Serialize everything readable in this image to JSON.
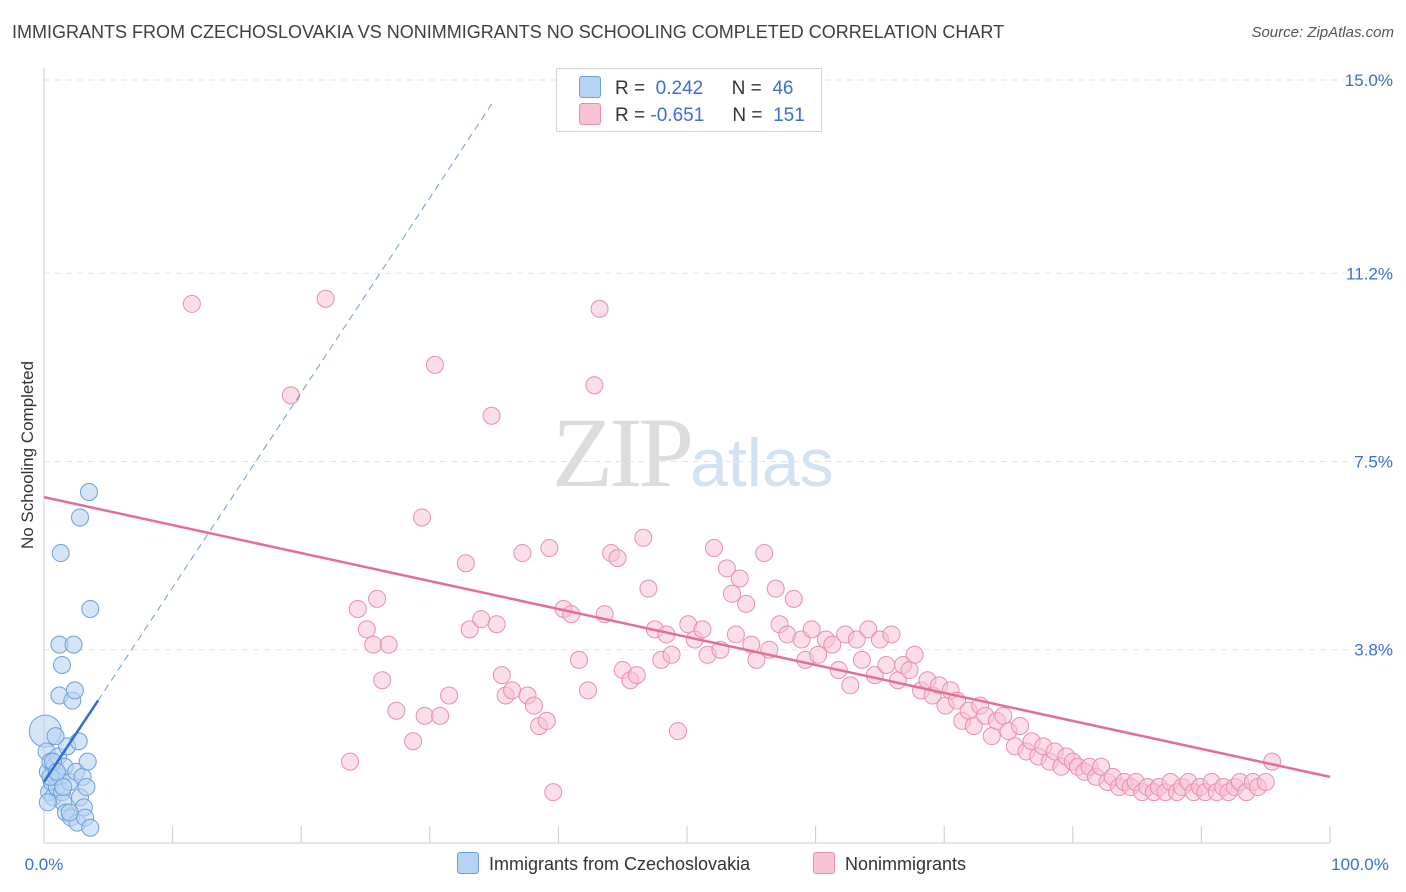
{
  "title": "IMMIGRANTS FROM CZECHOSLOVAKIA VS NONIMMIGRANTS NO SCHOOLING COMPLETED CORRELATION CHART",
  "source": "Source: ZipAtlas.com",
  "watermark": {
    "zip": "ZIP",
    "atlas": "atlas"
  },
  "legend": {
    "rows": [
      {
        "r_label": "R =",
        "r_value": "0.242",
        "n_label": "N =",
        "n_value": "46"
      },
      {
        "r_label": "R =",
        "r_value": "-0.651",
        "n_label": "N =",
        "n_value": "151"
      }
    ]
  },
  "colors": {
    "blue_fill": "#b7d3f2",
    "blue_stroke": "#6f9fd8",
    "blue_line": "#2c6fd6",
    "pink_fill": "#f7c3d3",
    "pink_stroke": "#e98fae",
    "pink_line": "#e0709a",
    "grid": "#e3e3e3",
    "axis_label": "#3b6fd1"
  },
  "chart_data": {
    "type": "scatter",
    "title": "IMMIGRANTS FROM CZECHOSLOVAKIA VS NONIMMIGRANTS NO SCHOOLING COMPLETED CORRELATION CHART",
    "xlabel": "",
    "ylabel": "No Schooling Completed",
    "xlim": [
      0,
      100
    ],
    "ylim": [
      0,
      15
    ],
    "x_tick_labels": [
      "0.0%",
      "100.0%"
    ],
    "y_ticks": [
      3.8,
      7.5,
      11.2,
      15.0
    ],
    "y_tick_labels": [
      "3.8%",
      "7.5%",
      "11.2%",
      "15.0%"
    ],
    "grid": "horizontal dashed",
    "legend_position": "bottom-center",
    "series": [
      {
        "name": "Immigrants from Czechoslovakia",
        "r": 0.242,
        "n": 46,
        "trend": {
          "x0": 0,
          "y0": 1.2,
          "x1": 4.2,
          "y1": 2.8,
          "dashed_extension_to": [
            35,
            14.6
          ]
        },
        "points": [
          [
            0.1,
            2.2
          ],
          [
            0.2,
            1.8
          ],
          [
            0.3,
            1.4
          ],
          [
            0.4,
            1.0
          ],
          [
            0.5,
            1.6
          ],
          [
            0.6,
            1.2
          ],
          [
            0.7,
            0.9
          ],
          [
            0.8,
            1.5
          ],
          [
            0.9,
            1.3
          ],
          [
            1.0,
            1.1
          ],
          [
            1.1,
            1.7
          ],
          [
            1.2,
            2.9
          ],
          [
            1.3,
            1.3
          ],
          [
            1.4,
            1.0
          ],
          [
            1.5,
            0.8
          ],
          [
            1.6,
            1.5
          ],
          [
            1.7,
            0.6
          ],
          [
            1.8,
            1.9
          ],
          [
            2.0,
            1.2
          ],
          [
            2.1,
            0.5
          ],
          [
            2.2,
            2.8
          ],
          [
            2.4,
            3.0
          ],
          [
            2.5,
            1.4
          ],
          [
            2.6,
            0.4
          ],
          [
            2.7,
            2.0
          ],
          [
            2.8,
            0.9
          ],
          [
            3.0,
            1.3
          ],
          [
            3.1,
            0.7
          ],
          [
            3.3,
            1.1
          ],
          [
            3.4,
            1.6
          ],
          [
            1.2,
            3.9
          ],
          [
            1.3,
            5.7
          ],
          [
            1.4,
            3.5
          ],
          [
            2.3,
            3.9
          ],
          [
            2.8,
            6.4
          ],
          [
            3.5,
            6.9
          ],
          [
            3.6,
            4.6
          ],
          [
            0.5,
            1.3
          ],
          [
            0.9,
            2.1
          ],
          [
            1.5,
            1.1
          ],
          [
            2.0,
            0.6
          ],
          [
            0.3,
            0.8
          ],
          [
            3.2,
            0.5
          ],
          [
            3.6,
            0.3
          ],
          [
            0.7,
            1.6
          ],
          [
            1.0,
            1.4
          ]
        ]
      },
      {
        "name": "Nonimmigrants",
        "r": -0.651,
        "n": 151,
        "trend": {
          "x0": 0,
          "y0": 6.8,
          "x1": 100,
          "y1": 1.3
        },
        "points": [
          [
            11.5,
            10.6
          ],
          [
            19.2,
            8.8
          ],
          [
            21.9,
            10.7
          ],
          [
            23.8,
            1.6
          ],
          [
            24.4,
            4.6
          ],
          [
            25.1,
            4.2
          ],
          [
            25.6,
            3.9
          ],
          [
            25.9,
            4.8
          ],
          [
            26.3,
            3.2
          ],
          [
            26.8,
            3.9
          ],
          [
            27.4,
            2.6
          ],
          [
            28.7,
            2.0
          ],
          [
            29.4,
            6.4
          ],
          [
            29.6,
            2.5
          ],
          [
            30.4,
            9.4
          ],
          [
            30.8,
            2.5
          ],
          [
            31.5,
            2.9
          ],
          [
            32.8,
            5.5
          ],
          [
            33.1,
            4.2
          ],
          [
            34.0,
            4.4
          ],
          [
            34.8,
            8.4
          ],
          [
            35.2,
            4.3
          ],
          [
            35.6,
            3.3
          ],
          [
            35.9,
            2.9
          ],
          [
            36.4,
            3.0
          ],
          [
            37.2,
            5.7
          ],
          [
            37.6,
            2.9
          ],
          [
            38.1,
            2.7
          ],
          [
            38.5,
            2.3
          ],
          [
            39.1,
            2.4
          ],
          [
            39.3,
            5.8
          ],
          [
            39.6,
            1.0
          ],
          [
            40.4,
            4.6
          ],
          [
            41.0,
            4.5
          ],
          [
            41.6,
            3.6
          ],
          [
            42.3,
            3.0
          ],
          [
            42.8,
            9.0
          ],
          [
            43.2,
            10.5
          ],
          [
            43.6,
            4.5
          ],
          [
            44.1,
            5.7
          ],
          [
            44.6,
            5.6
          ],
          [
            45.0,
            3.4
          ],
          [
            45.6,
            3.2
          ],
          [
            46.1,
            3.3
          ],
          [
            46.6,
            6.0
          ],
          [
            47.0,
            5.0
          ],
          [
            47.5,
            4.2
          ],
          [
            48.0,
            3.6
          ],
          [
            48.4,
            4.1
          ],
          [
            48.8,
            3.7
          ],
          [
            49.3,
            2.2
          ],
          [
            50.1,
            4.3
          ],
          [
            50.6,
            4.0
          ],
          [
            51.2,
            4.2
          ],
          [
            51.6,
            3.7
          ],
          [
            52.1,
            5.8
          ],
          [
            52.6,
            3.8
          ],
          [
            53.1,
            5.4
          ],
          [
            53.5,
            4.9
          ],
          [
            53.8,
            4.1
          ],
          [
            54.1,
            5.2
          ],
          [
            54.6,
            4.7
          ],
          [
            55.0,
            3.9
          ],
          [
            55.4,
            3.6
          ],
          [
            56.0,
            5.7
          ],
          [
            56.4,
            3.8
          ],
          [
            56.9,
            5.0
          ],
          [
            57.2,
            4.3
          ],
          [
            57.8,
            4.1
          ],
          [
            58.3,
            4.8
          ],
          [
            58.9,
            4.0
          ],
          [
            59.2,
            3.6
          ],
          [
            59.7,
            4.2
          ],
          [
            60.2,
            3.7
          ],
          [
            60.8,
            4.0
          ],
          [
            61.3,
            3.9
          ],
          [
            61.8,
            3.4
          ],
          [
            62.3,
            4.1
          ],
          [
            62.7,
            3.1
          ],
          [
            63.2,
            4.0
          ],
          [
            63.6,
            3.6
          ],
          [
            64.1,
            4.2
          ],
          [
            64.6,
            3.3
          ],
          [
            65.0,
            4.0
          ],
          [
            65.5,
            3.5
          ],
          [
            65.9,
            4.1
          ],
          [
            66.4,
            3.2
          ],
          [
            66.8,
            3.5
          ],
          [
            67.3,
            3.4
          ],
          [
            67.7,
            3.7
          ],
          [
            68.2,
            3.0
          ],
          [
            68.7,
            3.2
          ],
          [
            69.1,
            2.9
          ],
          [
            69.6,
            3.1
          ],
          [
            70.1,
            2.7
          ],
          [
            70.5,
            3.0
          ],
          [
            71.0,
            2.8
          ],
          [
            71.4,
            2.4
          ],
          [
            71.9,
            2.6
          ],
          [
            72.3,
            2.3
          ],
          [
            72.8,
            2.7
          ],
          [
            73.2,
            2.5
          ],
          [
            73.7,
            2.1
          ],
          [
            74.1,
            2.4
          ],
          [
            74.6,
            2.5
          ],
          [
            75.0,
            2.2
          ],
          [
            75.5,
            1.9
          ],
          [
            75.9,
            2.3
          ],
          [
            76.4,
            1.8
          ],
          [
            76.8,
            2.0
          ],
          [
            77.3,
            1.7
          ],
          [
            77.7,
            1.9
          ],
          [
            78.2,
            1.6
          ],
          [
            78.6,
            1.8
          ],
          [
            79.1,
            1.5
          ],
          [
            79.5,
            1.7
          ],
          [
            80.0,
            1.6
          ],
          [
            80.4,
            1.5
          ],
          [
            80.9,
            1.4
          ],
          [
            81.3,
            1.5
          ],
          [
            81.8,
            1.3
          ],
          [
            82.2,
            1.5
          ],
          [
            82.7,
            1.2
          ],
          [
            83.1,
            1.3
          ],
          [
            83.6,
            1.1
          ],
          [
            84.0,
            1.2
          ],
          [
            84.5,
            1.1
          ],
          [
            84.9,
            1.2
          ],
          [
            85.4,
            1.0
          ],
          [
            85.8,
            1.1
          ],
          [
            86.3,
            1.0
          ],
          [
            86.7,
            1.1
          ],
          [
            87.2,
            1.0
          ],
          [
            87.6,
            1.2
          ],
          [
            88.1,
            1.0
          ],
          [
            88.5,
            1.1
          ],
          [
            89.0,
            1.2
          ],
          [
            89.4,
            1.0
          ],
          [
            89.9,
            1.1
          ],
          [
            90.3,
            1.0
          ],
          [
            90.8,
            1.2
          ],
          [
            91.2,
            1.0
          ],
          [
            91.7,
            1.1
          ],
          [
            92.1,
            1.0
          ],
          [
            92.6,
            1.1
          ],
          [
            93.0,
            1.2
          ],
          [
            93.5,
            1.0
          ],
          [
            94.0,
            1.2
          ],
          [
            94.4,
            1.1
          ],
          [
            95.0,
            1.2
          ],
          [
            95.5,
            1.6
          ]
        ]
      }
    ]
  },
  "bottom_legend": [
    {
      "label": "Immigrants from Czechoslovakia"
    },
    {
      "label": "Nonimmigrants"
    }
  ]
}
